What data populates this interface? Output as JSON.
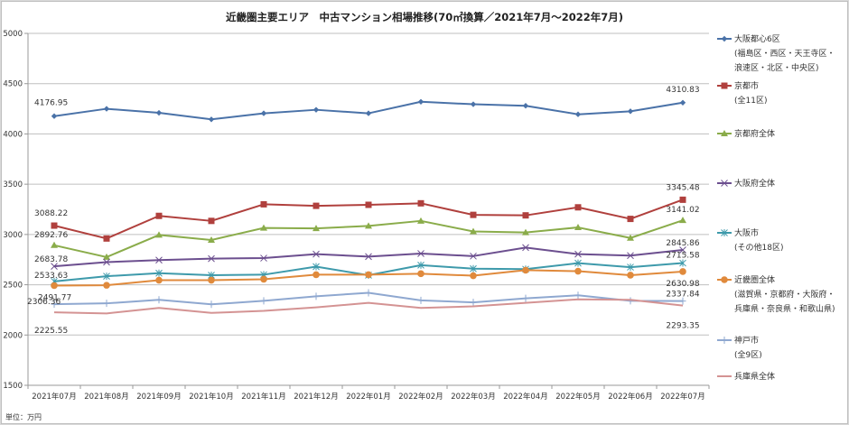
{
  "chart_data": {
    "type": "line",
    "title": "近畿圏主要エリア　中古マンション相場推移(70㎡換算／2021年7月～2022年7月)",
    "xlabel": "",
    "ylabel": "",
    "unit_note": "単位：万円",
    "ylim": [
      1500,
      5000
    ],
    "yticks": [
      1500,
      2000,
      2500,
      3000,
      3500,
      4000,
      4500,
      5000
    ],
    "grid": true,
    "legend_position": "right",
    "categories": [
      "2021年07月",
      "2021年08月",
      "2021年09月",
      "2021年10月",
      "2021年11月",
      "2021年12月",
      "2022年01月",
      "2022年02月",
      "2022年03月",
      "2022年04月",
      "2022年05月",
      "2022年06月",
      "2022年07月"
    ],
    "series": [
      {
        "name": "大阪都心6区",
        "legend_lines": [
          "大阪都心6区",
          "(福島区・西区・天王寺区・",
          "浪速区・北区・中央区)"
        ],
        "color": "#4a72a8",
        "marker": "diamond",
        "values": [
          4176.95,
          4250,
          4210,
          4145,
          4205,
          4240,
          4205,
          4320,
          4295,
          4280,
          4195,
          4225,
          4310.83
        ],
        "start_label": "4176.95",
        "end_label": "4310.83"
      },
      {
        "name": "京都市",
        "legend_lines": [
          "京都市",
          "(全11区)"
        ],
        "color": "#b0403d",
        "marker": "square",
        "values": [
          3088.22,
          2960,
          3185,
          3135,
          3300,
          3285,
          3295,
          3310,
          3195,
          3190,
          3270,
          3155,
          3345.48
        ],
        "start_label": "3088.22",
        "end_label": "3345.48"
      },
      {
        "name": "京都府全体",
        "legend_lines": [
          "京都府全体"
        ],
        "color": "#8aac4a",
        "marker": "triangle",
        "values": [
          2892.76,
          2775,
          2995,
          2945,
          3065,
          3060,
          3085,
          3135,
          3030,
          3020,
          3070,
          2965,
          3141.02
        ],
        "start_label": "2892.76",
        "end_label": "3141.02"
      },
      {
        "name": "大阪府全体",
        "legend_lines": [
          "大阪府全体"
        ],
        "color": "#6c4f8f",
        "marker": "x",
        "values": [
          2683.78,
          2725,
          2745,
          2760,
          2765,
          2805,
          2780,
          2810,
          2785,
          2870,
          2805,
          2790,
          2845.86
        ],
        "start_label": "2683.78",
        "end_label": "2845.86"
      },
      {
        "name": "大阪市",
        "legend_lines": [
          "大阪市",
          "(その他18区)"
        ],
        "color": "#3e9aab",
        "marker": "star",
        "values": [
          2533.63,
          2585,
          2615,
          2595,
          2600,
          2680,
          2595,
          2695,
          2660,
          2655,
          2715,
          2675,
          2715.58
        ],
        "start_label": "2533.63",
        "end_label": "2715.58"
      },
      {
        "name": "近畿圏全体",
        "legend_lines": [
          "近畿圏全体",
          "(滋賀県・京都府・大阪府・",
          "兵庫県・奈良県・和歌山県)"
        ],
        "color": "#e08a3c",
        "marker": "circle",
        "values": [
          2491.77,
          2495,
          2545,
          2545,
          2555,
          2600,
          2600,
          2610,
          2590,
          2645,
          2635,
          2595,
          2630.98
        ],
        "start_label": "2491.77",
        "end_label": "2630.98"
      },
      {
        "name": "神戸市",
        "legend_lines": [
          "神戸市",
          "(全9区)"
        ],
        "color": "#8fa8d0",
        "marker": "plus",
        "values": [
          2306.36,
          2315,
          2350,
          2305,
          2340,
          2385,
          2420,
          2345,
          2325,
          2365,
          2395,
          2340,
          2337.84
        ],
        "start_label": "2306.36",
        "end_label": "2337.84"
      },
      {
        "name": "兵庫県全体",
        "legend_lines": [
          "兵庫県全体"
        ],
        "color": "#d49393",
        "marker": "none",
        "values": [
          2225.55,
          2215,
          2270,
          2220,
          2240,
          2275,
          2320,
          2270,
          2285,
          2320,
          2355,
          2350,
          2293.35
        ],
        "start_label": "2225.55",
        "end_label": "2293.35"
      }
    ]
  }
}
